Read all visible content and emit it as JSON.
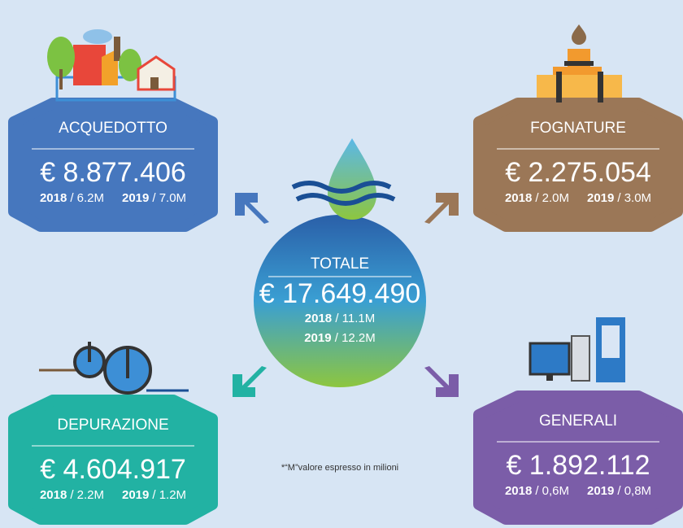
{
  "center": {
    "title": "TOTALE",
    "amount": "€ 17.649.490",
    "years": [
      {
        "year": "2018",
        "value": "/ 11.1M"
      },
      {
        "year": "2019",
        "value": "/ 12.2M"
      }
    ]
  },
  "boxes": [
    {
      "title": "ACQUEDOTTO",
      "amount": "€ 8.877.406",
      "years": [
        {
          "year": "2018",
          "value": "/ 6.2M"
        },
        {
          "year": "2019",
          "value": "/ 7.0M"
        }
      ]
    },
    {
      "title": "FOGNATURE",
      "amount": "€ 2.275.054",
      "years": [
        {
          "year": "2018",
          "value": "/ 2.0M"
        },
        {
          "year": "2019",
          "value": "/ 3.0M"
        }
      ]
    },
    {
      "title": "DEPURAZIONE",
      "amount": "€ 4.604.917",
      "years": [
        {
          "year": "2018",
          "value": "/ 2.2M"
        },
        {
          "year": "2019",
          "value": "/ 1.2M"
        }
      ]
    },
    {
      "title": "GENERALI",
      "amount": "€ 1.892.112",
      "years": [
        {
          "year": "2018",
          "value": "/ 0,6M"
        },
        {
          "year": "2019",
          "value": "/ 0,8M"
        }
      ]
    }
  ],
  "footnote": "*“M”valore espresso in milioni"
}
